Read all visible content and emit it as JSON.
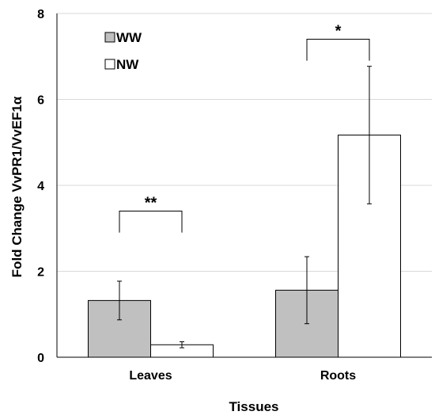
{
  "chart_data": {
    "type": "bar",
    "xlabel": "Tissues",
    "ylabel": "Fold Change  VvPR1/VvEF1α",
    "ylim": [
      0,
      8
    ],
    "yticks": [
      0,
      2,
      4,
      6,
      8
    ],
    "grid": true,
    "legend_position": "top-left",
    "categories": [
      "Leaves",
      "Roots"
    ],
    "series": [
      {
        "name": "WW",
        "color": "#c0c0c0",
        "values": [
          1.32,
          1.56
        ],
        "errors": [
          0.45,
          0.78
        ]
      },
      {
        "name": "NW",
        "color": "#ffffff",
        "values": [
          0.29,
          5.17
        ],
        "errors": [
          0.07,
          1.6
        ]
      }
    ],
    "significance": [
      {
        "category": "Leaves",
        "label": "**",
        "bracket_y": 3.4,
        "drop_to": 2.9
      },
      {
        "category": "Roots",
        "label": "*",
        "bracket_y": 7.4,
        "drop_to": 6.9
      }
    ]
  }
}
